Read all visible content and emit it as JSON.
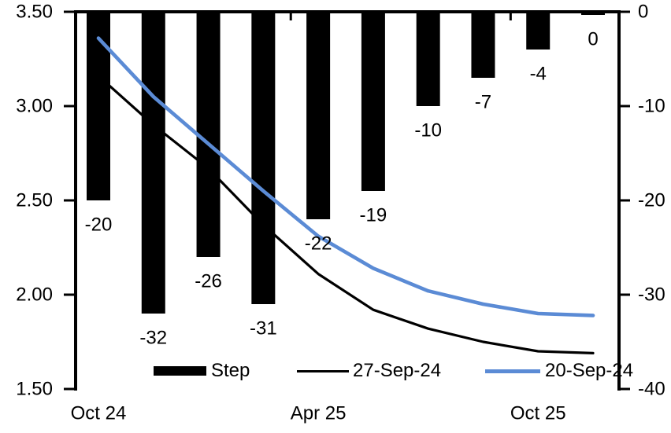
{
  "chart_data": {
    "type": "combo",
    "background_color": "#ffffff",
    "text_color": "#000000",
    "grid": "off",
    "left_axis": {
      "side": "left",
      "min": 1.5,
      "max": 3.5,
      "tick_labels": [
        "3.50",
        "3.00",
        "2.50",
        "2.00",
        "1.50"
      ],
      "tick_values": [
        3.5,
        3.0,
        2.5,
        2.0,
        1.5
      ]
    },
    "right_axis": {
      "side": "right",
      "min": -40,
      "max": 0,
      "tick_labels": [
        "0",
        "-10",
        "-20",
        "-30",
        "-40"
      ],
      "tick_values": [
        0,
        -10,
        -20,
        -30,
        -40
      ]
    },
    "x_axis": {
      "num_categories": 10,
      "visible_labels": [
        {
          "index": 0,
          "text": "Oct 24"
        },
        {
          "index": 4,
          "text": "Apr 25"
        },
        {
          "index": 8,
          "text": "Oct 25"
        }
      ],
      "boundary_ticks_before_index": [
        4,
        8
      ]
    },
    "series": [
      {
        "name": "Step",
        "type": "bar",
        "axis": "right",
        "color": "#000000",
        "values": [
          -20,
          -32,
          -26,
          -31,
          -22,
          -19,
          -10,
          -7,
          -4,
          0
        ],
        "data_labels": [
          "-20",
          "-32",
          "-26",
          "-31",
          "-22",
          "-19",
          "-10",
          "-7",
          "-4",
          "0"
        ]
      },
      {
        "name": "27-Sep-24",
        "type": "line",
        "axis": "left",
        "color": "#000000",
        "values": [
          3.16,
          2.9,
          2.67,
          2.37,
          2.11,
          1.92,
          1.82,
          1.75,
          1.7,
          1.69
        ]
      },
      {
        "name": "20-Sep-24",
        "type": "line",
        "axis": "left",
        "color": "#5B8BD5",
        "values": [
          3.36,
          3.05,
          2.8,
          2.55,
          2.31,
          2.14,
          2.02,
          1.95,
          1.9,
          1.89
        ]
      }
    ],
    "legend": {
      "position": "bottom-inside",
      "items": [
        "Step",
        "27-Sep-24",
        "20-Sep-24"
      ]
    }
  }
}
